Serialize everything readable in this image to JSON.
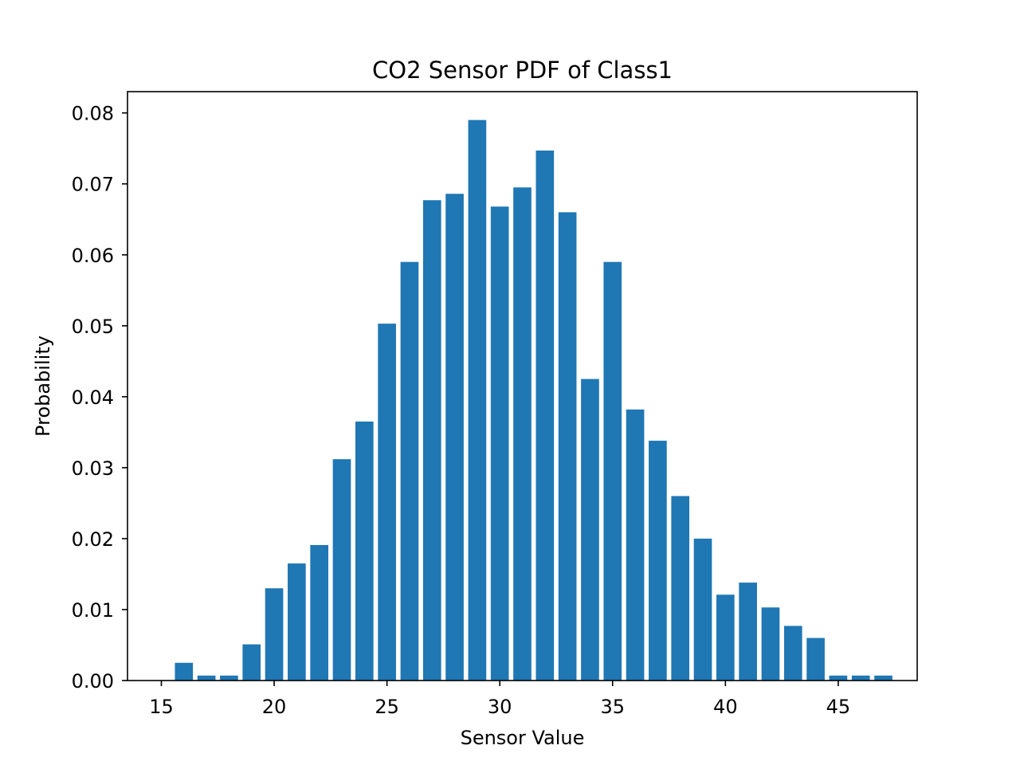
{
  "chart_data": {
    "type": "bar",
    "title": "CO2 Sensor PDF of Class1",
    "xlabel": "Sensor Value",
    "ylabel": "Probability",
    "x": [
      16,
      17,
      18,
      19,
      20,
      21,
      22,
      23,
      24,
      25,
      26,
      27,
      28,
      29,
      30,
      31,
      32,
      33,
      34,
      35,
      36,
      37,
      38,
      39,
      40,
      41,
      42,
      43,
      44,
      45,
      46,
      47
    ],
    "values": [
      0.0025,
      0.0007,
      0.0007,
      0.0051,
      0.013,
      0.0165,
      0.0191,
      0.0312,
      0.0365,
      0.0503,
      0.059,
      0.0677,
      0.0686,
      0.079,
      0.0668,
      0.0695,
      0.0747,
      0.066,
      0.0425,
      0.059,
      0.0382,
      0.0338,
      0.026,
      0.02,
      0.0121,
      0.0138,
      0.0103,
      0.0077,
      0.006,
      0.0007,
      0.0007,
      0.0007
    ],
    "bar_width": 0.8,
    "xlim": [
      13.5,
      48.5
    ],
    "ylim": [
      0,
      0.083
    ],
    "xticks": [
      15,
      20,
      25,
      30,
      35,
      40,
      45
    ],
    "xtick_labels": [
      "15",
      "20",
      "25",
      "30",
      "35",
      "40",
      "45"
    ],
    "yticks": [
      0,
      0.01,
      0.02,
      0.03,
      0.04,
      0.05,
      0.06,
      0.07,
      0.08
    ],
    "ytick_labels": [
      "0.00",
      "0.01",
      "0.02",
      "0.03",
      "0.04",
      "0.05",
      "0.06",
      "0.07",
      "0.08"
    ],
    "bar_color": "#1f77b4",
    "grid": false,
    "legend": "none"
  }
}
